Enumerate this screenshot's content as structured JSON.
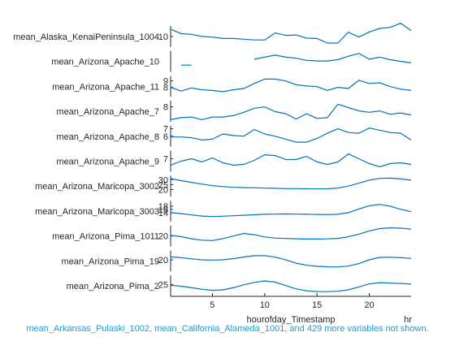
{
  "chart_data": {
    "type": "line",
    "title": "",
    "xlabel": "hourofday_Timestamp",
    "xunit": "hr",
    "xlim": [
      1,
      24
    ],
    "xticks": [
      "5",
      "10",
      "15",
      "20"
    ],
    "series": [
      {
        "name": "mean_Alaska_KenaiPeninsula_1004",
        "yticks": [
          "10"
        ],
        "ylim": [
          7,
          13
        ],
        "x": [
          1,
          2,
          3,
          4,
          5,
          6,
          7,
          8,
          9,
          10,
          11,
          12,
          13,
          14,
          15,
          16,
          17,
          18,
          19,
          20,
          21,
          22,
          23,
          24
        ],
        "y": [
          12.1,
          10.8,
          10.6,
          10.0,
          9.8,
          9.4,
          9.4,
          9.2,
          9.0,
          9.0,
          11.0,
          10.3,
          10.4,
          9.5,
          9.4,
          8.1,
          8.1,
          11.2,
          9.8,
          11.3,
          12.3,
          12.6,
          13.8,
          11.7
        ]
      },
      {
        "name": "mean_Arizona_Apache_10",
        "yticks": [],
        "ylim": [
          0,
          10
        ],
        "x": [
          2,
          3,
          null,
          9,
          10,
          11,
          12,
          13,
          14,
          15,
          16,
          17,
          18,
          19,
          20,
          21,
          22,
          23,
          24
        ],
        "y": [
          3.2,
          3.2,
          null,
          6.0,
          7.0,
          8.0,
          7.0,
          6.5,
          5.5,
          5.2,
          5.2,
          5.8,
          7.5,
          8.8,
          6.0,
          7.0,
          5.8,
          5.0,
          4.3
        ]
      },
      {
        "name": "mean_Arizona_Apache_11",
        "yticks": [
          "9",
          "8"
        ],
        "ylim": [
          6.5,
          9.8
        ],
        "x": [
          1,
          2,
          3,
          4,
          5,
          6,
          7,
          8,
          9,
          10,
          11,
          12,
          13,
          14,
          15,
          16,
          17,
          18,
          19,
          20,
          21,
          22,
          23,
          24
        ],
        "y": [
          8.0,
          7.4,
          7.9,
          7.6,
          7.5,
          7.3,
          7.6,
          7.8,
          8.6,
          9.3,
          9.3,
          9.0,
          8.4,
          8.2,
          8.1,
          7.5,
          8.0,
          7.8,
          9.1,
          8.6,
          8.7,
          8.1,
          7.7,
          7.5
        ]
      },
      {
        "name": "mean_Arizona_Apache_7",
        "yticks": [
          "8"
        ],
        "ylim": [
          5.8,
          8.9
        ],
        "x": [
          1,
          2,
          3,
          4,
          5,
          6,
          7,
          8,
          9,
          10,
          11,
          12,
          13,
          14,
          15,
          16,
          17,
          18,
          19,
          20,
          21,
          22,
          23,
          24
        ],
        "y": [
          6.1,
          6.4,
          6.5,
          6.1,
          6.5,
          6.5,
          6.7,
          7.2,
          7.8,
          8.0,
          7.3,
          7.0,
          6.2,
          7.0,
          6.3,
          6.4,
          8.4,
          7.9,
          7.4,
          7.2,
          7.4,
          6.9,
          7.1,
          6.8
        ]
      },
      {
        "name": "mean_Arizona_Apache_8",
        "yticks": [
          "7",
          "6"
        ],
        "ylim": [
          4.6,
          7.4
        ],
        "x": [
          1,
          2,
          3,
          4,
          5,
          6,
          7,
          8,
          9,
          10,
          11,
          12,
          13,
          14,
          15,
          16,
          17,
          18,
          19,
          20,
          21,
          22,
          23,
          24
        ],
        "y": [
          5.9,
          5.9,
          5.8,
          5.5,
          5.6,
          6.3,
          6.1,
          6.0,
          6.9,
          6.3,
          6.0,
          5.6,
          5.2,
          5.2,
          5.7,
          6.4,
          7.0,
          6.5,
          6.4,
          7.1,
          6.8,
          6.5,
          6.4,
          5.5
        ]
      },
      {
        "name": "mean_Arizona_Apache_9",
        "yticks": [
          "7"
        ],
        "ylim": [
          5.4,
          8.0
        ],
        "x": [
          1,
          2,
          3,
          4,
          5,
          6,
          7,
          8,
          9,
          10,
          11,
          12,
          13,
          14,
          15,
          16,
          17,
          18,
          19,
          20,
          21,
          22,
          23,
          24
        ],
        "y": [
          6.2,
          6.7,
          7.0,
          6.6,
          7.1,
          6.5,
          6.2,
          6.3,
          6.8,
          7.5,
          7.4,
          6.9,
          6.9,
          7.3,
          6.6,
          6.3,
          6.6,
          7.6,
          7.0,
          6.4,
          6.0,
          6.4,
          6.5,
          6.3
        ]
      },
      {
        "name": "mean_Arizona_Maricopa_3002",
        "yticks": [
          "30",
          "25",
          "20"
        ],
        "ylim": [
          13,
          34
        ],
        "x": [
          1,
          2,
          3,
          4,
          5,
          6,
          7,
          8,
          9,
          10,
          11,
          12,
          13,
          14,
          15,
          16,
          17,
          18,
          19,
          20,
          21,
          22,
          23,
          24
        ],
        "y": [
          31.0,
          29.0,
          27.3,
          25.5,
          24.0,
          23.0,
          22.3,
          22.0,
          21.8,
          21.5,
          21.3,
          21.0,
          21.0,
          20.8,
          20.7,
          20.8,
          21.5,
          23.5,
          26.5,
          29.5,
          31.3,
          31.5,
          30.7,
          29.5
        ]
      },
      {
        "name": "mean_Arizona_Maricopa_3003",
        "yticks": [
          "18",
          "16",
          "14"
        ],
        "ylim": [
          8.5,
          21.5
        ],
        "x": [
          1,
          2,
          3,
          4,
          5,
          6,
          7,
          8,
          9,
          10,
          11,
          12,
          13,
          14,
          15,
          16,
          17,
          18,
          19,
          20,
          21,
          22,
          23,
          24
        ],
        "y": [
          14.0,
          13.4,
          12.6,
          11.9,
          11.6,
          11.8,
          12.1,
          12.4,
          12.7,
          13.0,
          13.1,
          13.2,
          13.1,
          13.0,
          12.9,
          12.8,
          13.0,
          14.0,
          16.3,
          18.3,
          19.1,
          18.0,
          16.1,
          14.6
        ]
      },
      {
        "name": "mean_Arizona_Pima_1011",
        "yticks": [
          "20"
        ],
        "ylim": [
          12,
          28
        ],
        "x": [
          1,
          2,
          3,
          4,
          5,
          6,
          7,
          8,
          9,
          10,
          11,
          12,
          13,
          14,
          15,
          16,
          17,
          18,
          19,
          20,
          21,
          22,
          23,
          24
        ],
        "y": [
          20.5,
          19.5,
          17.9,
          16.8,
          16.5,
          18.0,
          20.0,
          22.0,
          21.0,
          19.3,
          18.4,
          18.1,
          17.9,
          17.7,
          17.7,
          17.8,
          18.2,
          19.4,
          21.4,
          23.9,
          25.7,
          26.3,
          26.0,
          25.3
        ]
      },
      {
        "name": "mean_Arizona_Pima_19",
        "yticks": [
          "20"
        ],
        "ylim": [
          10,
          28
        ],
        "x": [
          1,
          2,
          3,
          4,
          5,
          6,
          7,
          8,
          9,
          10,
          11,
          12,
          13,
          14,
          15,
          16,
          17,
          18,
          19,
          20,
          21,
          22,
          23,
          24
        ],
        "y": [
          22.5,
          21.8,
          20.8,
          20.0,
          19.8,
          20.0,
          21.0,
          22.4,
          23.5,
          23.6,
          22.3,
          19.9,
          17.1,
          15.3,
          14.4,
          14.0,
          13.8,
          14.6,
          16.8,
          20.0,
          22.1,
          22.2,
          21.8,
          21.2
        ]
      },
      {
        "name": "mean_Arizona_Pima_2",
        "yticks": [
          "25"
        ],
        "ylim": [
          16,
          32
        ],
        "x": [
          1,
          2,
          3,
          4,
          5,
          6,
          7,
          8,
          9,
          10,
          11,
          12,
          13,
          14,
          15,
          16,
          17,
          18,
          19,
          20,
          21,
          22,
          23,
          24
        ],
        "y": [
          24.5,
          23.8,
          22.6,
          21.4,
          20.6,
          21.0,
          22.6,
          24.8,
          26.7,
          27.8,
          26.9,
          24.3,
          21.7,
          20.2,
          19.7,
          19.6,
          19.9,
          21.0,
          23.2,
          25.5,
          26.5,
          26.2,
          25.8,
          25.4
        ]
      }
    ],
    "footnote": "mean_Arkansas_Pulaski_1002, mean_California_Alameda_1001, and 429 more variables not shown."
  }
}
